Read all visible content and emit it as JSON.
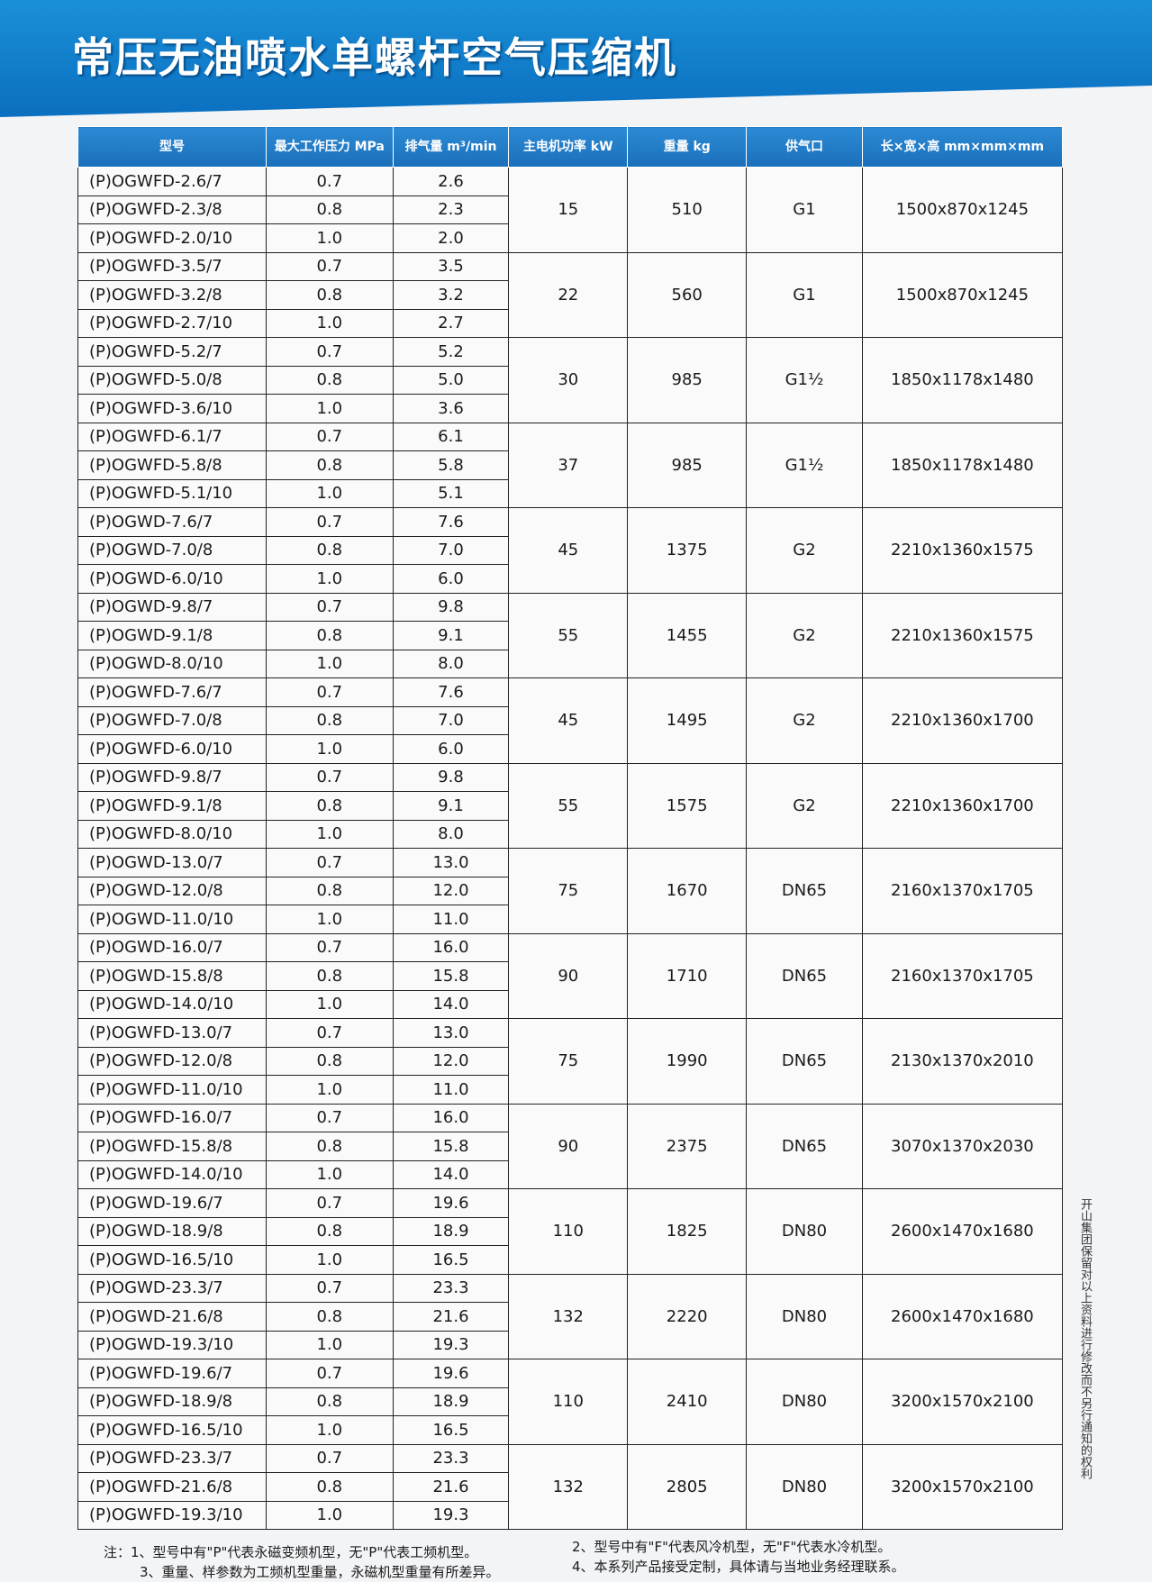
{
  "title": "常压无油喷水单螺杆空气压缩机",
  "headers": [
    "型号",
    "最大工作压力 MPa",
    "排气量 m³/min",
    "主电机功率 kW",
    "重量 kg",
    "供气口",
    "长×宽×高 mm×mm×mm"
  ],
  "groups": [
    {
      "kw": "15",
      "kg": "510",
      "port": "G1",
      "dims": "1500x870x1245",
      "rows": [
        [
          "(P)OGWFD-2.6/7",
          "0.7",
          "2.6"
        ],
        [
          "(P)OGWFD-2.3/8",
          "0.8",
          "2.3"
        ],
        [
          "(P)OGWFD-2.0/10",
          "1.0",
          "2.0"
        ]
      ]
    },
    {
      "kw": "22",
      "kg": "560",
      "port": "G1",
      "dims": "1500x870x1245",
      "rows": [
        [
          "(P)OGWFD-3.5/7",
          "0.7",
          "3.5"
        ],
        [
          "(P)OGWFD-3.2/8",
          "0.8",
          "3.2"
        ],
        [
          "(P)OGWFD-2.7/10",
          "1.0",
          "2.7"
        ]
      ]
    },
    {
      "kw": "30",
      "kg": "985",
      "port": "G1½",
      "dims": "1850x1178x1480",
      "rows": [
        [
          "(P)OGWFD-5.2/7",
          "0.7",
          "5.2"
        ],
        [
          "(P)OGWFD-5.0/8",
          "0.8",
          "5.0"
        ],
        [
          "(P)OGWFD-3.6/10",
          "1.0",
          "3.6"
        ]
      ]
    },
    {
      "kw": "37",
      "kg": "985",
      "port": "G1½",
      "dims": "1850x1178x1480",
      "rows": [
        [
          "(P)OGWFD-6.1/7",
          "0.7",
          "6.1"
        ],
        [
          "(P)OGWFD-5.8/8",
          "0.8",
          "5.8"
        ],
        [
          "(P)OGWFD-5.1/10",
          "1.0",
          "5.1"
        ]
      ]
    },
    {
      "kw": "45",
      "kg": "1375",
      "port": "G2",
      "dims": "2210x1360x1575",
      "rows": [
        [
          "(P)OGWD-7.6/7",
          "0.7",
          "7.6"
        ],
        [
          "(P)OGWD-7.0/8",
          "0.8",
          "7.0"
        ],
        [
          "(P)OGWD-6.0/10",
          "1.0",
          "6.0"
        ]
      ]
    },
    {
      "kw": "55",
      "kg": "1455",
      "port": "G2",
      "dims": "2210x1360x1575",
      "rows": [
        [
          "(P)OGWD-9.8/7",
          "0.7",
          "9.8"
        ],
        [
          "(P)OGWD-9.1/8",
          "0.8",
          "9.1"
        ],
        [
          "(P)OGWD-8.0/10",
          "1.0",
          "8.0"
        ]
      ]
    },
    {
      "kw": "45",
      "kg": "1495",
      "port": "G2",
      "dims": "2210x1360x1700",
      "rows": [
        [
          "(P)OGWFD-7.6/7",
          "0.7",
          "7.6"
        ],
        [
          "(P)OGWFD-7.0/8",
          "0.8",
          "7.0"
        ],
        [
          "(P)OGWFD-6.0/10",
          "1.0",
          "6.0"
        ]
      ]
    },
    {
      "kw": "55",
      "kg": "1575",
      "port": "G2",
      "dims": "2210x1360x1700",
      "rows": [
        [
          "(P)OGWFD-9.8/7",
          "0.7",
          "9.8"
        ],
        [
          "(P)OGWFD-9.1/8",
          "0.8",
          "9.1"
        ],
        [
          "(P)OGWFD-8.0/10",
          "1.0",
          "8.0"
        ]
      ]
    },
    {
      "kw": "75",
      "kg": "1670",
      "port": "DN65",
      "dims": "2160x1370x1705",
      "rows": [
        [
          "(P)OGWD-13.0/7",
          "0.7",
          "13.0"
        ],
        [
          "(P)OGWD-12.0/8",
          "0.8",
          "12.0"
        ],
        [
          "(P)OGWD-11.0/10",
          "1.0",
          "11.0"
        ]
      ]
    },
    {
      "kw": "90",
      "kg": "1710",
      "port": "DN65",
      "dims": "2160x1370x1705",
      "rows": [
        [
          "(P)OGWD-16.0/7",
          "0.7",
          "16.0"
        ],
        [
          "(P)OGWD-15.8/8",
          "0.8",
          "15.8"
        ],
        [
          "(P)OGWD-14.0/10",
          "1.0",
          "14.0"
        ]
      ]
    },
    {
      "kw": "75",
      "kg": "1990",
      "port": "DN65",
      "dims": "2130x1370x2010",
      "rows": [
        [
          "(P)OGWFD-13.0/7",
          "0.7",
          "13.0"
        ],
        [
          "(P)OGWFD-12.0/8",
          "0.8",
          "12.0"
        ],
        [
          "(P)OGWFD-11.0/10",
          "1.0",
          "11.0"
        ]
      ]
    },
    {
      "kw": "90",
      "kg": "2375",
      "port": "DN65",
      "dims": "3070x1370x2030",
      "rows": [
        [
          "(P)OGWFD-16.0/7",
          "0.7",
          "16.0"
        ],
        [
          "(P)OGWFD-15.8/8",
          "0.8",
          "15.8"
        ],
        [
          "(P)OGWFD-14.0/10",
          "1.0",
          "14.0"
        ]
      ]
    },
    {
      "kw": "110",
      "kg": "1825",
      "port": "DN80",
      "dims": "2600x1470x1680",
      "rows": [
        [
          "(P)OGWD-19.6/7",
          "0.7",
          "19.6"
        ],
        [
          "(P)OGWD-18.9/8",
          "0.8",
          "18.9"
        ],
        [
          "(P)OGWD-16.5/10",
          "1.0",
          "16.5"
        ]
      ]
    },
    {
      "kw": "132",
      "kg": "2220",
      "port": "DN80",
      "dims": "2600x1470x1680",
      "rows": [
        [
          "(P)OGWD-23.3/7",
          "0.7",
          "23.3"
        ],
        [
          "(P)OGWD-21.6/8",
          "0.8",
          "21.6"
        ],
        [
          "(P)OGWD-19.3/10",
          "1.0",
          "19.3"
        ]
      ]
    },
    {
      "kw": "110",
      "kg": "2410",
      "port": "DN80",
      "dims": "3200x1570x2100",
      "rows": [
        [
          "(P)OGWFD-19.6/7",
          "0.7",
          "19.6"
        ],
        [
          "(P)OGWFD-18.9/8",
          "0.8",
          "18.9"
        ],
        [
          "(P)OGWFD-16.5/10",
          "1.0",
          "16.5"
        ]
      ]
    },
    {
      "kw": "132",
      "kg": "2805",
      "port": "DN80",
      "dims": "3200x1570x2100",
      "rows": [
        [
          "(P)OGWFD-23.3/7",
          "0.7",
          "23.3"
        ],
        [
          "(P)OGWFD-21.6/8",
          "0.8",
          "21.6"
        ],
        [
          "(P)OGWFD-19.3/10",
          "1.0",
          "19.3"
        ]
      ]
    }
  ],
  "notes": {
    "n1": "注：1、型号中有\"P\"代表永磁变频机型，无\"P\"代表工频机型。",
    "n2": "2、型号中有\"F\"代表风冷机型，无\"F\"代表水冷机型。",
    "n3": "3、重量、样参数为工频机型重量，永磁机型重量有所差异。",
    "n4": "4、本系列产品接受定制，具体请与当地业务经理联系。"
  },
  "side_note": "开山集团保留对以上资料进行修改而不另行通知的权利"
}
